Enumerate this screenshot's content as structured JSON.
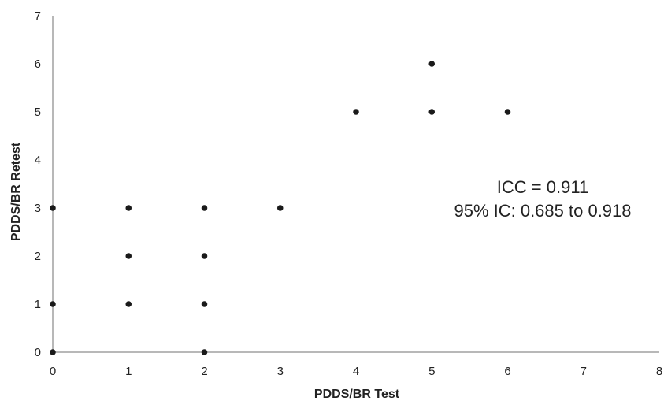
{
  "chart_data": {
    "type": "scatter",
    "xlabel": "PDDS/BR Test",
    "ylabel": "PDDS/BR Retest",
    "xlim": [
      0,
      8
    ],
    "ylim": [
      0,
      7
    ],
    "x_ticks": [
      0,
      1,
      2,
      3,
      4,
      5,
      6,
      7,
      8
    ],
    "y_ticks": [
      0,
      1,
      2,
      3,
      4,
      5,
      6,
      7
    ],
    "grid": false,
    "legend": "none",
    "point_color": "#1a1a1a",
    "axis_color": "#a0a0a0",
    "annotations": [
      "ICC = 0.911",
      "95% IC: 0.685 to 0.918"
    ],
    "points": [
      {
        "x": 0,
        "y": 0
      },
      {
        "x": 0,
        "y": 1
      },
      {
        "x": 0,
        "y": 3
      },
      {
        "x": 1,
        "y": 1
      },
      {
        "x": 1,
        "y": 2
      },
      {
        "x": 1,
        "y": 3
      },
      {
        "x": 2,
        "y": 0
      },
      {
        "x": 2,
        "y": 1
      },
      {
        "x": 2,
        "y": 2
      },
      {
        "x": 2,
        "y": 3
      },
      {
        "x": 3,
        "y": 3
      },
      {
        "x": 4,
        "y": 5
      },
      {
        "x": 5,
        "y": 5
      },
      {
        "x": 5,
        "y": 6
      },
      {
        "x": 6,
        "y": 5
      }
    ]
  }
}
